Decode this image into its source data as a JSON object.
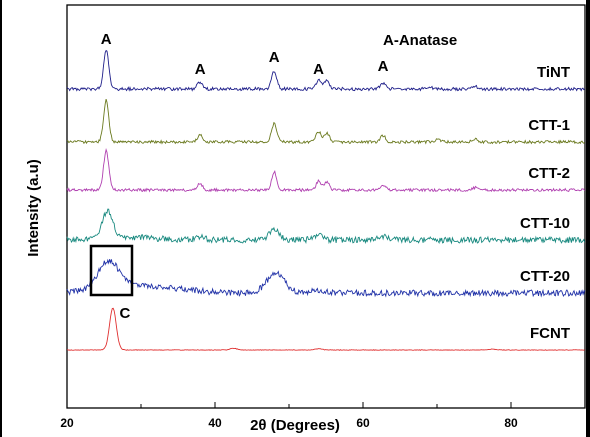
{
  "chart_data": {
    "type": "line",
    "title": "",
    "xlabel": "2θ (Degrees)",
    "ylabel": "Intensity (a.u)",
    "xlim": [
      20,
      90
    ],
    "x_ticks": [
      "20",
      "40",
      "60",
      "80"
    ],
    "y_ticks_visible": false,
    "legend_text": "A-Anatase",
    "peak_markers": [
      {
        "label": "A",
        "x": 25.3
      },
      {
        "label": "A",
        "x": 38.0
      },
      {
        "label": "A",
        "x": 48.0
      },
      {
        "label": "A",
        "x": 54.0
      },
      {
        "label": "A",
        "x": 62.7
      },
      {
        "label": "C",
        "x": 26.2
      }
    ],
    "series": [
      {
        "name": "TiNT",
        "color": "#1f1f8a",
        "peaks": [
          [
            25.3,
            1.0
          ],
          [
            38.0,
            0.18
          ],
          [
            48.0,
            0.45
          ],
          [
            54.0,
            0.22
          ],
          [
            55.1,
            0.2
          ],
          [
            62.7,
            0.15
          ],
          [
            68.9,
            0.06
          ],
          [
            75.1,
            0.06
          ]
        ]
      },
      {
        "name": "CTT-1",
        "color": "#6b7a1f",
        "peaks": [
          [
            25.3,
            1.0
          ],
          [
            38.0,
            0.17
          ],
          [
            48.0,
            0.45
          ],
          [
            54.0,
            0.24
          ],
          [
            55.1,
            0.22
          ],
          [
            62.7,
            0.15
          ],
          [
            70.2,
            0.06
          ],
          [
            75.1,
            0.07
          ]
        ]
      },
      {
        "name": "CTT-2",
        "color": "#b040b0",
        "peaks": [
          [
            25.3,
            1.0
          ],
          [
            38.0,
            0.16
          ],
          [
            48.0,
            0.45
          ],
          [
            54.0,
            0.22
          ],
          [
            55.1,
            0.2
          ],
          [
            62.7,
            0.14
          ],
          [
            75.1,
            0.06
          ]
        ]
      },
      {
        "name": "CTT-10",
        "color": "#1a8a80",
        "peaks": [
          [
            25.5,
            0.75
          ],
          [
            38.0,
            0.1
          ],
          [
            48.0,
            0.3
          ],
          [
            54.0,
            0.12
          ],
          [
            62.7,
            0.1
          ]
        ]
      },
      {
        "name": "CTT-20",
        "color": "#2233a8",
        "peaks": [
          [
            25.6,
            0.7
          ],
          [
            48.2,
            0.5
          ],
          [
            54.0,
            0.06
          ]
        ]
      },
      {
        "name": "FCNT",
        "color": "#e03030",
        "peaks": [
          [
            26.2,
            1.0
          ],
          [
            42.5,
            0.04
          ],
          [
            54.0,
            0.03
          ],
          [
            77.5,
            0.02
          ]
        ]
      }
    ],
    "inset_box_label": "",
    "grid": false
  }
}
